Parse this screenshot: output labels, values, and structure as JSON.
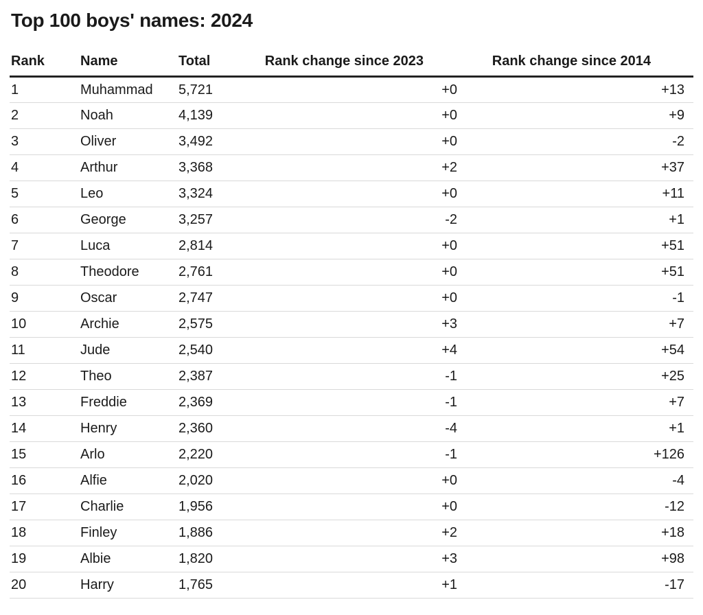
{
  "title": "Top 100 boys' names: 2024",
  "colors": {
    "text": "#1a1a1a",
    "header_rule": "#222222",
    "row_rule": "#d9d9d9",
    "background": "#ffffff"
  },
  "chart_data": {
    "type": "table",
    "title": "Top 100 boys' names: 2024",
    "columns": [
      "Rank",
      "Name",
      "Total",
      "Rank change since 2023",
      "Rank change since 2014"
    ],
    "rows": [
      {
        "rank": "1",
        "name": "Muhammad",
        "total": "5,721",
        "change_2023": "+0",
        "change_2014": "+13"
      },
      {
        "rank": "2",
        "name": "Noah",
        "total": "4,139",
        "change_2023": "+0",
        "change_2014": "+9"
      },
      {
        "rank": "3",
        "name": "Oliver",
        "total": "3,492",
        "change_2023": "+0",
        "change_2014": "-2"
      },
      {
        "rank": "4",
        "name": "Arthur",
        "total": "3,368",
        "change_2023": "+2",
        "change_2014": "+37"
      },
      {
        "rank": "5",
        "name": "Leo",
        "total": "3,324",
        "change_2023": "+0",
        "change_2014": "+11"
      },
      {
        "rank": "6",
        "name": "George",
        "total": "3,257",
        "change_2023": "-2",
        "change_2014": "+1"
      },
      {
        "rank": "7",
        "name": "Luca",
        "total": "2,814",
        "change_2023": "+0",
        "change_2014": "+51"
      },
      {
        "rank": "8",
        "name": "Theodore",
        "total": "2,761",
        "change_2023": "+0",
        "change_2014": "+51"
      },
      {
        "rank": "9",
        "name": "Oscar",
        "total": "2,747",
        "change_2023": "+0",
        "change_2014": "-1"
      },
      {
        "rank": "10",
        "name": "Archie",
        "total": "2,575",
        "change_2023": "+3",
        "change_2014": "+7"
      },
      {
        "rank": "11",
        "name": "Jude",
        "total": "2,540",
        "change_2023": "+4",
        "change_2014": "+54"
      },
      {
        "rank": "12",
        "name": "Theo",
        "total": "2,387",
        "change_2023": "-1",
        "change_2014": "+25"
      },
      {
        "rank": "13",
        "name": "Freddie",
        "total": "2,369",
        "change_2023": "-1",
        "change_2014": "+7"
      },
      {
        "rank": "14",
        "name": "Henry",
        "total": "2,360",
        "change_2023": "-4",
        "change_2014": "+1"
      },
      {
        "rank": "15",
        "name": "Arlo",
        "total": "2,220",
        "change_2023": "-1",
        "change_2014": "+126"
      },
      {
        "rank": "16",
        "name": "Alfie",
        "total": "2,020",
        "change_2023": "+0",
        "change_2014": "-4"
      },
      {
        "rank": "17",
        "name": "Charlie",
        "total": "1,956",
        "change_2023": "+0",
        "change_2014": "-12"
      },
      {
        "rank": "18",
        "name": "Finley",
        "total": "1,886",
        "change_2023": "+2",
        "change_2014": "+18"
      },
      {
        "rank": "19",
        "name": "Albie",
        "total": "1,820",
        "change_2023": "+3",
        "change_2014": "+98"
      },
      {
        "rank": "20",
        "name": "Harry",
        "total": "1,765",
        "change_2023": "+1",
        "change_2014": "-17"
      }
    ]
  }
}
